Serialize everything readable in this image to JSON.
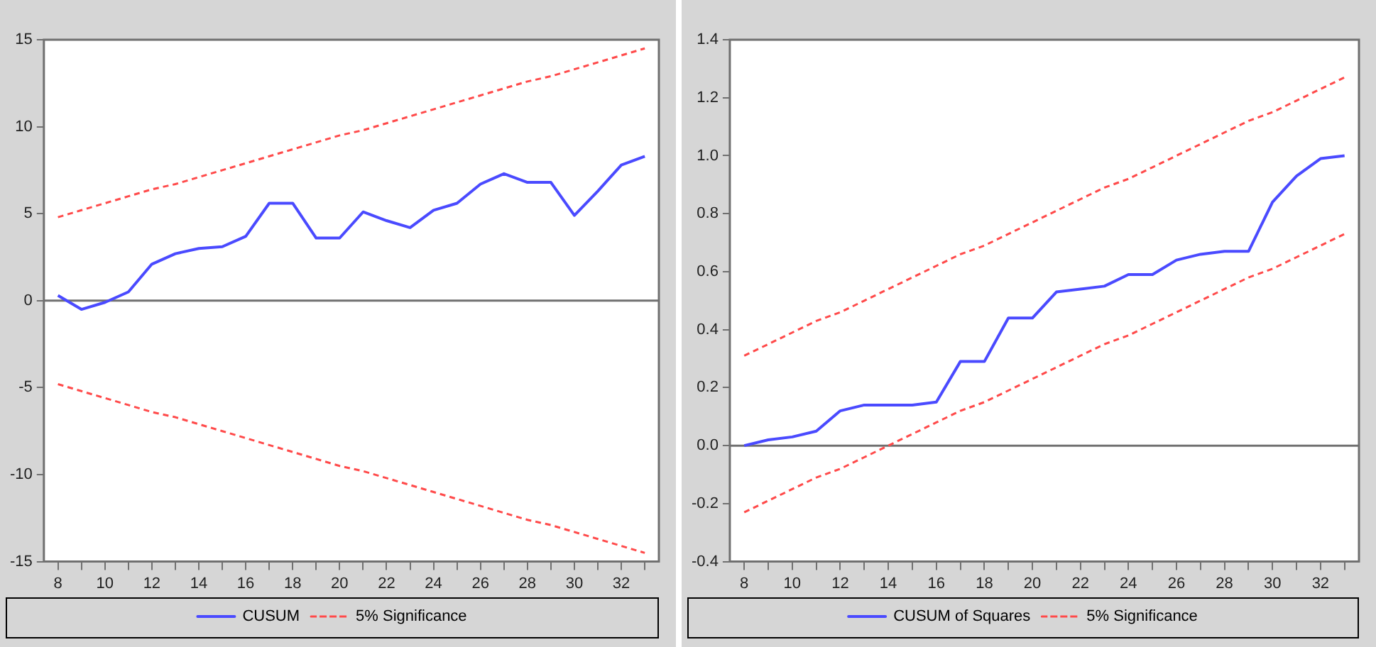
{
  "chart_data": [
    {
      "type": "line",
      "x": [
        8,
        9,
        10,
        11,
        12,
        13,
        14,
        15,
        16,
        17,
        18,
        19,
        20,
        21,
        22,
        23,
        24,
        25,
        26,
        27,
        28,
        29,
        30,
        31,
        32,
        33
      ],
      "xlim": [
        7.4,
        33.6
      ],
      "xticks": [
        8,
        {
          "value": 9,
          "label": null
        },
        10,
        {
          "value": 11,
          "label": null
        },
        12,
        {
          "value": 13,
          "label": null
        },
        14,
        {
          "value": 15,
          "label": null
        },
        16,
        {
          "value": 17,
          "label": null
        },
        18,
        {
          "value": 19,
          "label": null
        },
        20,
        {
          "value": 21,
          "label": null
        },
        22,
        {
          "value": 23,
          "label": null
        },
        24,
        {
          "value": 25,
          "label": null
        },
        26,
        {
          "value": 27,
          "label": null
        },
        28,
        {
          "value": 29,
          "label": null
        },
        30,
        {
          "value": 31,
          "label": null
        },
        32,
        {
          "value": 33,
          "label": null
        }
      ],
      "ylim": [
        -15,
        15
      ],
      "yticks": [
        -15,
        -10,
        -5,
        0,
        5,
        10,
        15
      ],
      "grid": false,
      "legend": "bottom",
      "marker": "none",
      "ref_lines": [
        {
          "axis": "y",
          "value": 0,
          "color": "#707070"
        }
      ],
      "series": [
        {
          "name": "CUSUM",
          "color": "#4a4aff",
          "line_style": "solid",
          "values": [
            0.3,
            -0.5,
            -0.1,
            0.5,
            2.1,
            2.7,
            3.0,
            3.1,
            3.7,
            5.6,
            5.6,
            3.6,
            3.6,
            5.1,
            4.6,
            4.2,
            5.2,
            5.6,
            6.7,
            7.3,
            6.8,
            6.8,
            4.9,
            6.3,
            7.8,
            8.3
          ]
        },
        {
          "name": "5% Significance",
          "color": "#ff4a4a",
          "line_style": "dashed",
          "values": [
            4.8,
            5.2,
            5.6,
            6.0,
            6.4,
            6.7,
            7.1,
            7.5,
            7.9,
            8.3,
            8.7,
            9.1,
            9.5,
            9.8,
            10.2,
            10.6,
            11.0,
            11.4,
            11.8,
            12.2,
            12.6,
            12.9,
            13.3,
            13.7,
            14.1,
            14.5
          ]
        },
        {
          "color": "#ff4a4a",
          "line_style": "dashed",
          "values": [
            -4.8,
            -5.2,
            -5.6,
            -6.0,
            -6.4,
            -6.7,
            -7.1,
            -7.5,
            -7.9,
            -8.3,
            -8.7,
            -9.1,
            -9.5,
            -9.8,
            -10.2,
            -10.6,
            -11.0,
            -11.4,
            -11.8,
            -12.2,
            -12.6,
            -12.9,
            -13.3,
            -13.7,
            -14.1,
            -14.5
          ]
        }
      ]
    },
    {
      "type": "line",
      "x": [
        8,
        9,
        10,
        11,
        12,
        13,
        14,
        15,
        16,
        17,
        18,
        19,
        20,
        21,
        22,
        23,
        24,
        25,
        26,
        27,
        28,
        29,
        30,
        31,
        32,
        33
      ],
      "xlim": [
        7.4,
        33.6
      ],
      "xticks": [
        8,
        {
          "value": 9,
          "label": null
        },
        10,
        {
          "value": 11,
          "label": null
        },
        12,
        {
          "value": 13,
          "label": null
        },
        14,
        {
          "value": 15,
          "label": null
        },
        16,
        {
          "value": 17,
          "label": null
        },
        18,
        {
          "value": 19,
          "label": null
        },
        20,
        {
          "value": 21,
          "label": null
        },
        22,
        {
          "value": 23,
          "label": null
        },
        24,
        {
          "value": 25,
          "label": null
        },
        26,
        {
          "value": 27,
          "label": null
        },
        28,
        {
          "value": 29,
          "label": null
        },
        30,
        {
          "value": 31,
          "label": null
        },
        32,
        {
          "value": 33,
          "label": null
        }
      ],
      "ylim": [
        -0.4,
        1.4
      ],
      "yticks": [
        {
          "value": -0.4,
          "label": "-0.4"
        },
        {
          "value": -0.2,
          "label": "-0.2"
        },
        {
          "value": 0,
          "label": "0.0"
        },
        {
          "value": 0.2,
          "label": "0.2"
        },
        {
          "value": 0.4,
          "label": "0.4"
        },
        {
          "value": 0.6,
          "label": "0.6"
        },
        {
          "value": 0.8,
          "label": "0.8"
        },
        {
          "value": 1.0,
          "label": "1.0"
        },
        {
          "value": 1.2,
          "label": "1.2"
        },
        {
          "value": 1.4,
          "label": "1.4"
        }
      ],
      "grid": false,
      "legend": "bottom",
      "marker": "none",
      "ref_lines": [
        {
          "axis": "y",
          "value": 0,
          "color": "#707070"
        }
      ],
      "series": [
        {
          "name": "CUSUM of Squares",
          "color": "#4a4aff",
          "line_style": "solid",
          "values": [
            0.0,
            0.02,
            0.03,
            0.05,
            0.12,
            0.14,
            0.14,
            0.14,
            0.15,
            0.29,
            0.29,
            0.44,
            0.44,
            0.53,
            0.54,
            0.55,
            0.59,
            0.59,
            0.64,
            0.66,
            0.67,
            0.67,
            0.84,
            0.93,
            0.99,
            1.0
          ]
        },
        {
          "name": "5% Significance",
          "color": "#ff4a4a",
          "line_style": "dashed",
          "values": [
            0.31,
            0.35,
            0.39,
            0.43,
            0.46,
            0.5,
            0.54,
            0.58,
            0.62,
            0.66,
            0.69,
            0.73,
            0.77,
            0.81,
            0.85,
            0.89,
            0.92,
            0.96,
            1.0,
            1.04,
            1.08,
            1.12,
            1.15,
            1.19,
            1.23,
            1.27
          ]
        },
        {
          "color": "#ff4a4a",
          "line_style": "dashed",
          "values": [
            -0.23,
            -0.19,
            -0.15,
            -0.11,
            -0.08,
            -0.04,
            0.0,
            0.04,
            0.08,
            0.12,
            0.15,
            0.19,
            0.23,
            0.27,
            0.31,
            0.35,
            0.38,
            0.42,
            0.46,
            0.5,
            0.54,
            0.58,
            0.61,
            0.65,
            0.69,
            0.73
          ]
        }
      ]
    }
  ]
}
